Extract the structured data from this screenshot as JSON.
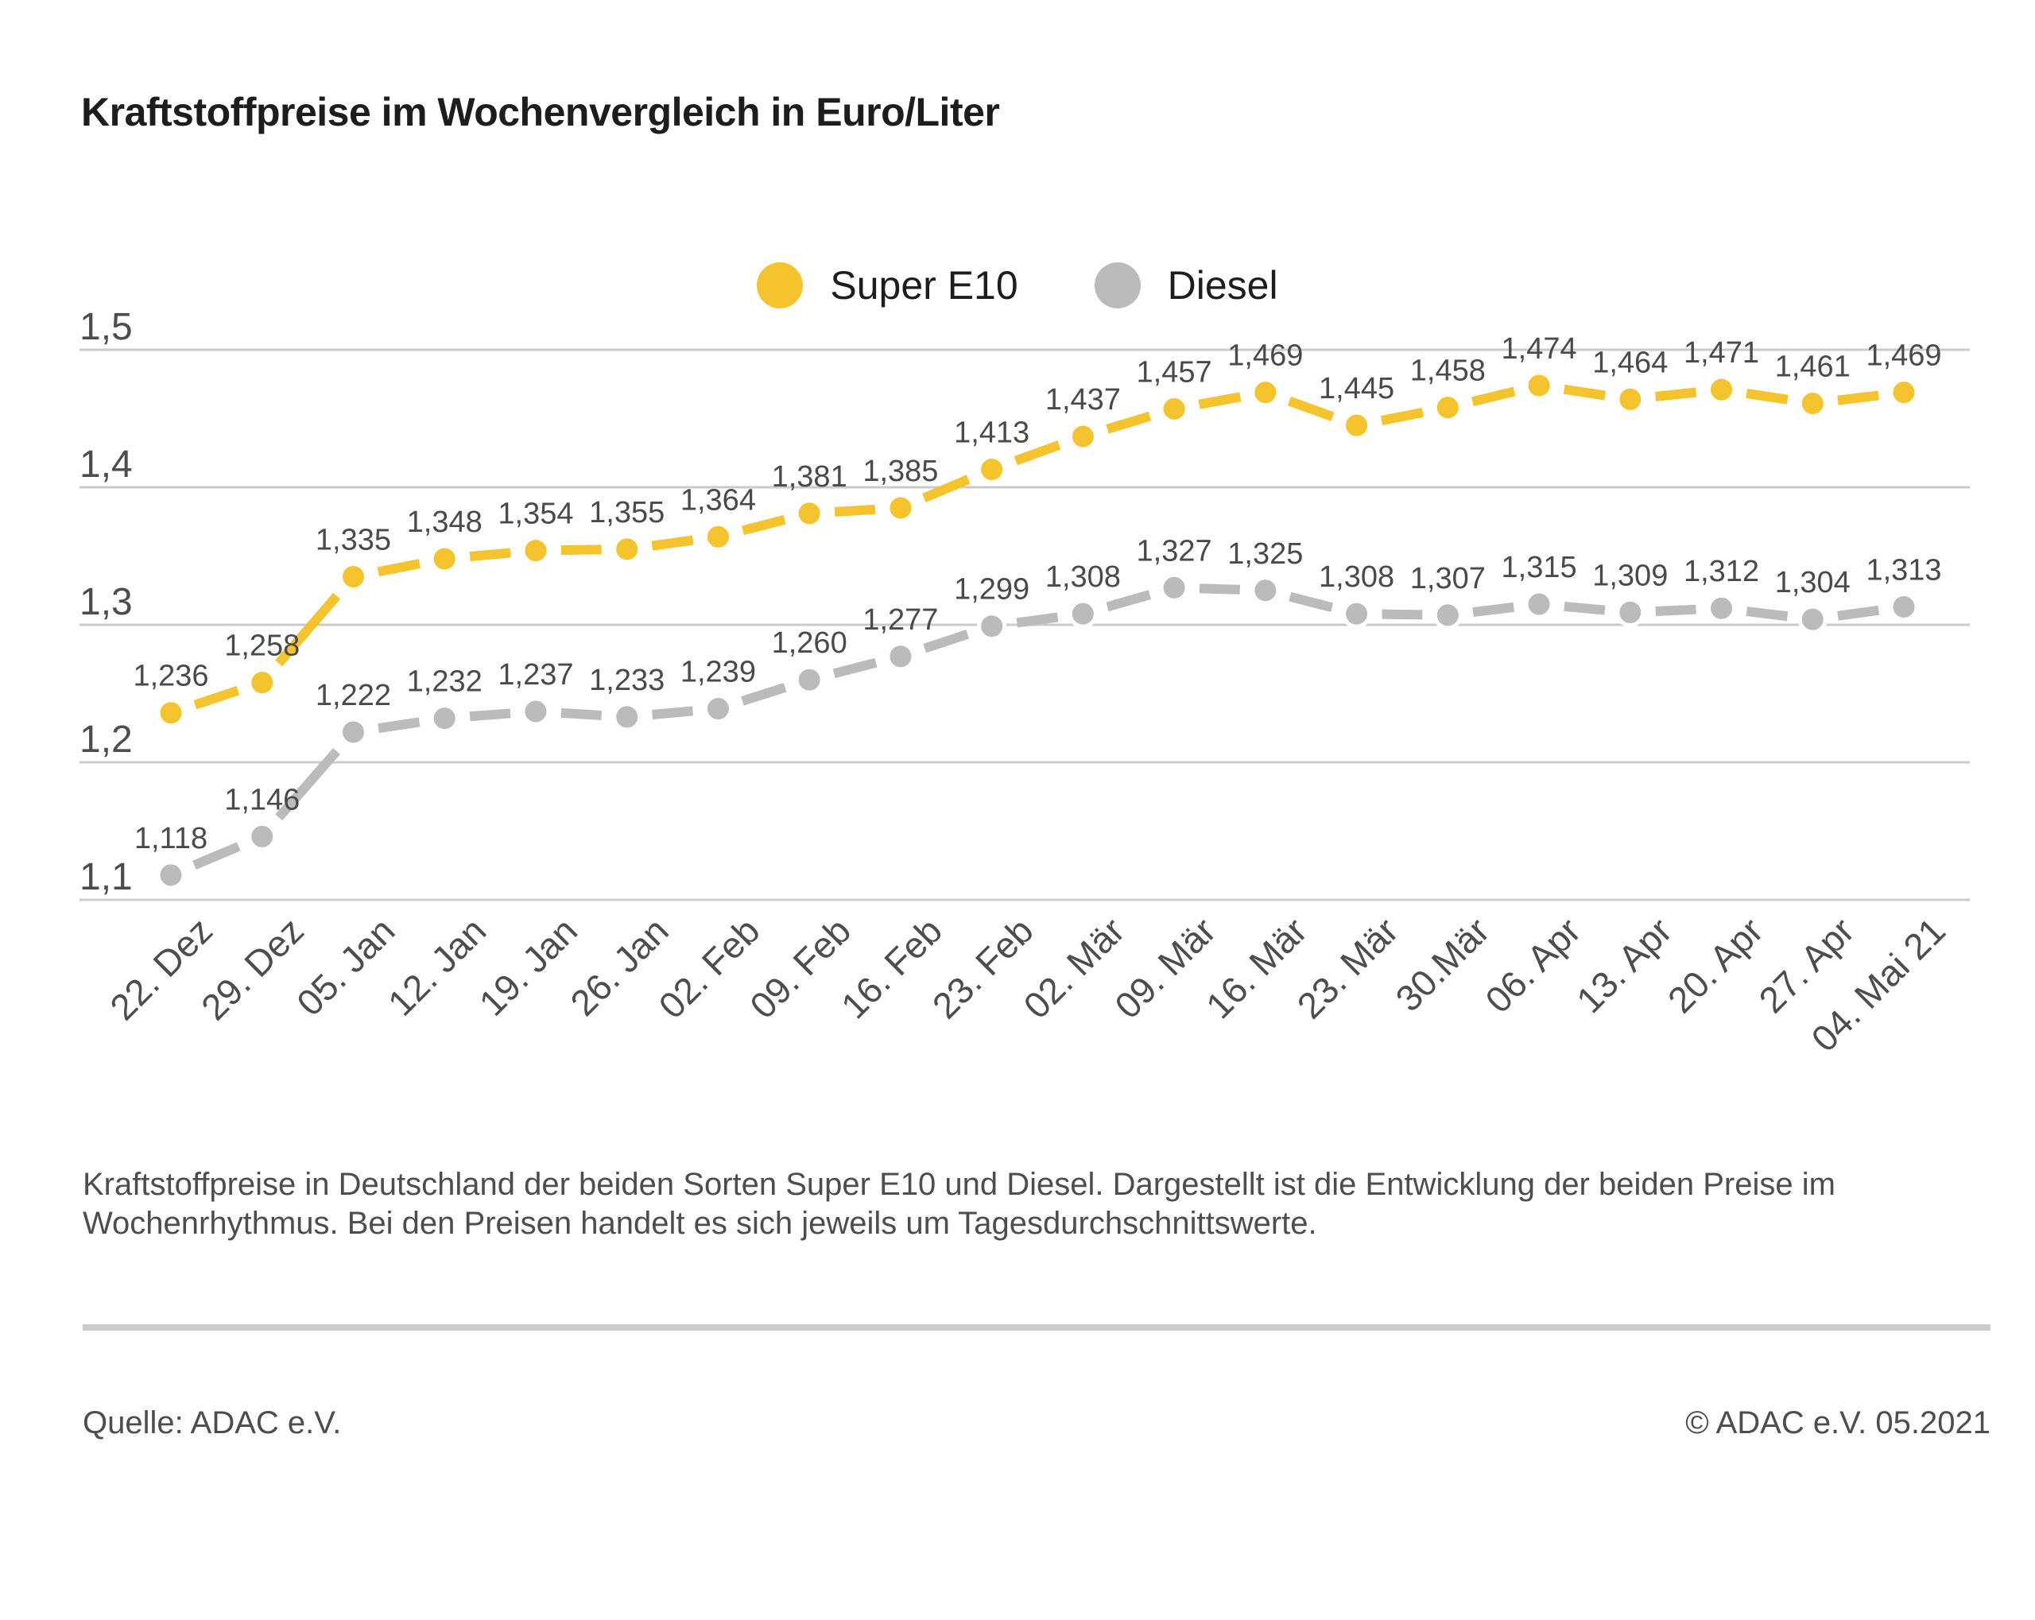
{
  "title": "Kraftstoffpreise im Wochenvergleich in Euro/Liter",
  "legend": [
    {
      "label": "Super E10",
      "color": "#f5c32e"
    },
    {
      "label": "Diesel",
      "color": "#bbbbbb"
    }
  ],
  "chart_data": {
    "type": "line",
    "title": "Kraftstoffpreise im Wochenvergleich in Euro/Liter",
    "xlabel": "",
    "ylabel": "Euro/Liter",
    "categories": [
      "22. Dez",
      "29. Dez",
      "05. Jan",
      "12. Jan",
      "19. Jan",
      "26. Jan",
      "02. Feb",
      "09. Feb",
      "16. Feb",
      "23. Feb",
      "02. Mär",
      "09. Mär",
      "16. Mär",
      "23. Mär",
      "30.Mär",
      "06. Apr",
      "13. Apr",
      "20. Apr",
      "27. Apr",
      "04. Mai 21"
    ],
    "series": [
      {
        "name": "Super E10",
        "color": "#f5c32e",
        "values": [
          1.236,
          1.258,
          1.335,
          1.348,
          1.354,
          1.355,
          1.364,
          1.381,
          1.385,
          1.413,
          1.437,
          1.457,
          1.469,
          1.445,
          1.458,
          1.474,
          1.464,
          1.471,
          1.461,
          1.469
        ]
      },
      {
        "name": "Diesel",
        "color": "#bbbbbb",
        "values": [
          1.118,
          1.146,
          1.222,
          1.232,
          1.237,
          1.233,
          1.239,
          1.26,
          1.277,
          1.299,
          1.308,
          1.327,
          1.325,
          1.308,
          1.307,
          1.315,
          1.309,
          1.312,
          1.304,
          1.313
        ]
      }
    ],
    "ylim": [
      1.1,
      1.5
    ],
    "yticks": [
      1.1,
      1.2,
      1.3,
      1.4,
      1.5
    ],
    "ytick_labels": [
      "1,1",
      "1,2",
      "1,3",
      "1,4",
      "1,5"
    ],
    "decimal_separator": ",",
    "grid": true,
    "value_labels": true,
    "legend_position": "top-center"
  },
  "description": "Kraftstoffpreise in Deutschland der beiden Sorten Super E10 und Diesel. Dargestellt ist die Entwicklung der beiden Preise im Wochenrhythmus. Bei den Preisen handelt es sich jeweils um Tagesdurchschnittswerte.",
  "source": "Quelle: ADAC e.V.",
  "copyright": "© ADAC e.V. 05.2021",
  "colors": {
    "grid": "#cbcbcb",
    "axis_text": "#4d4d4d",
    "value_text": "#4a4a4a",
    "title_text": "#1d1d1b"
  }
}
